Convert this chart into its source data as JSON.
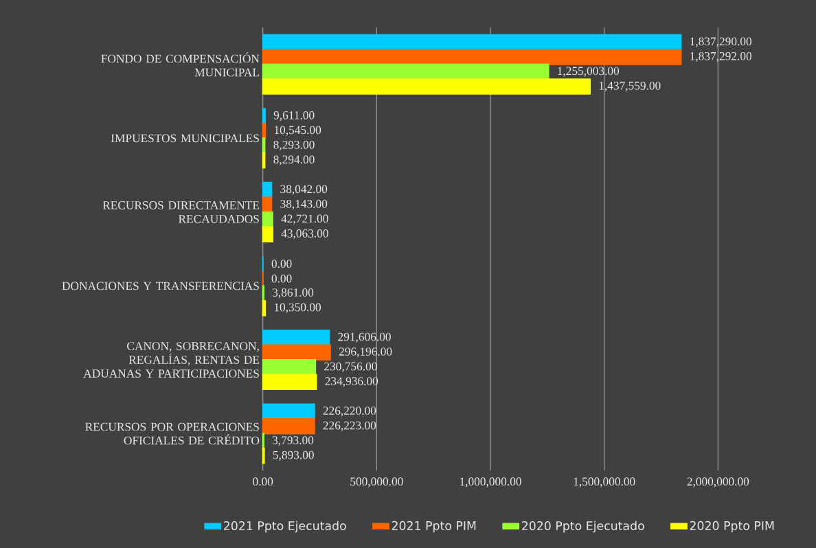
{
  "chart_data": {
    "type": "bar",
    "orientation": "horizontal",
    "categories": [
      "FONDO DE COMPENSACIÓN MUNICIPAL",
      "IMPUESTOS MUNICIPALES",
      "RECURSOS DIRECTAMENTE RECAUDADOS",
      "DONACIONES Y TRANSFERENCIAS",
      "CANON, SOBRECANON, REGALÍAS, RENTAS DE ADUANAS Y PARTICIPACIONES",
      "RECURSOS POR OPERACIONES OFICIALES DE CRÉDITO"
    ],
    "series": [
      {
        "name": "2021 Ppto Ejecutado",
        "color": "#00ccff",
        "values": [
          1837290,
          9611,
          38042,
          0,
          291606,
          226220
        ],
        "value_labels": [
          "1,837,290.00",
          "9,611.00",
          "38,042.00",
          "0.00",
          "291,606.00",
          "226,220.00"
        ]
      },
      {
        "name": "2021 Ppto PIM",
        "color": "#ff6600",
        "values": [
          1837292,
          10545,
          38143,
          0,
          296196,
          226223
        ],
        "value_labels": [
          "1,837,292.00",
          "10,545.00",
          "38,143.00",
          "0.00",
          "296,196.00",
          "226,223.00"
        ]
      },
      {
        "name": "2020 Ppto Ejecutado",
        "color": "#99ff33",
        "values": [
          1255003,
          8293,
          42721,
          3861,
          230756,
          3793
        ],
        "value_labels": [
          "1,255,003.00",
          "8,293.00",
          "42,721.00",
          "3,861.00",
          "230,756.00",
          "3,793.00"
        ]
      },
      {
        "name": "2020 Ppto PIM",
        "color": "#ffff00",
        "values": [
          1437559,
          8294,
          43063,
          10350,
          234936,
          5893
        ],
        "value_labels": [
          "1,437,559.00",
          "8,294.00",
          "43,063.00",
          "10,350.00",
          "234,936.00",
          "5,893.00"
        ]
      }
    ],
    "xlim": [
      0,
      2000000
    ],
    "xticks": [
      {
        "value": 0,
        "label": "0.00"
      },
      {
        "value": 500000,
        "label": "500,000.00"
      },
      {
        "value": 1000000,
        "label": "1,000,000.00"
      },
      {
        "value": 1500000,
        "label": "1,500,000.00"
      },
      {
        "value": 2000000,
        "label": "2,000,000.00"
      }
    ],
    "grid": "x",
    "legend": "bottom"
  }
}
